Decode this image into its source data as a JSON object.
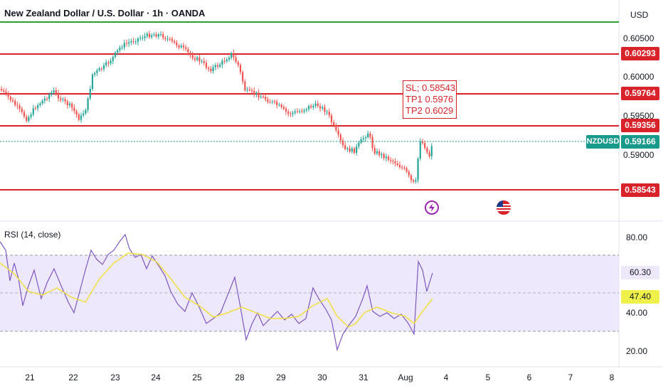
{
  "header": {
    "title": "New Zealand Dollar / U.S. Dollar · 1h · OANDA",
    "currency": "USD"
  },
  "price_axis": {
    "labels": [
      "0.60500",
      "0.60000",
      "0.59500",
      "0.59000"
    ],
    "levels": [
      {
        "value": "0.60293",
        "color": "#d8232a"
      },
      {
        "value": "0.59764",
        "color": "#d8232a"
      },
      {
        "value": "0.59356",
        "color": "#d8232a"
      },
      {
        "value": "0.58543",
        "color": "#d8232a"
      }
    ],
    "current": {
      "symbol": "NZDUSD",
      "value": "0.59166",
      "color": "#17998b"
    }
  },
  "annotation": {
    "lines": [
      "SL; 0.58543",
      "TP1 0.5976",
      "TP2 0.6029"
    ]
  },
  "rsi": {
    "title": "RSI (14, close)",
    "axis": [
      "80.00",
      "40.00",
      "20.00"
    ],
    "value": "60.30",
    "ma_value": "47.40",
    "line_color": "#7e57c2",
    "ma_color": "#f0e040"
  },
  "time_axis": {
    "labels": [
      "21",
      "22",
      "23",
      "24",
      "25",
      "28",
      "29",
      "30",
      "31",
      "Aug",
      "4",
      "5",
      "6",
      "7",
      "8"
    ]
  },
  "events": [
    {
      "icon": "lightning-icon"
    },
    {
      "icon": "us-flag-icon"
    }
  ],
  "colors": {
    "up": "#26a69a",
    "down": "#ef5350",
    "top_line": "#2e9e2e",
    "level": "#d8232a",
    "rsi_band": "#ede8fb"
  }
}
